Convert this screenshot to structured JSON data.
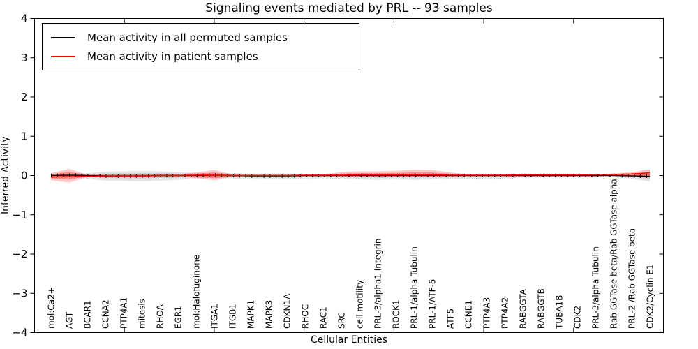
{
  "window": {
    "title": "Signaling events mediated by PRL -- 93 samples"
  },
  "legend": {
    "items": [
      {
        "label": "Mean activity in all permuted samples",
        "color": "#000000"
      },
      {
        "label": "Mean activity in patient samples",
        "color": "#ff0000"
      }
    ]
  },
  "chart_data": {
    "type": "line",
    "title": "Signaling events mediated by PRL -- 93 samples",
    "xlabel": "Cellular Entities",
    "ylabel": "Inferred Activity",
    "ylim": [
      -4,
      4
    ],
    "yticks": [
      4,
      3,
      2,
      1,
      0,
      -1,
      -2,
      -3,
      -4
    ],
    "yticklabels": [
      "4",
      "3",
      "2",
      "1",
      "0",
      "−1",
      "−2",
      "−3",
      "−4"
    ],
    "grid": false,
    "legend_position": "upper left",
    "colors": {
      "permuted": "#000000",
      "patient": "#ff0000"
    },
    "categories": [
      "mol:Ca2+",
      "AGT",
      "BCAR1",
      "CCNA2",
      "PTP4A1",
      "mitosis",
      "RHOA",
      "EGR1",
      "mol:Halofuginone",
      "ITGA1",
      "ITGB1",
      "MAPK1",
      "MAPK3",
      "CDKN1A",
      "RHOC",
      "RAC1",
      "SRC",
      "cell motility",
      "PRL-3/alpha1 Integrin",
      "ROCK1",
      "PRL-1/alpha Tubulin",
      "PRL-1/ATF-5",
      "ATF5",
      "CCNE1",
      "PTP4A3",
      "PTP4A2",
      "RABGGTA",
      "RABGGTB",
      "TUBA1B",
      "CDK2",
      "PRL-3/alpha Tubulin",
      "Rab GGTase beta/Rab GGTase alpha",
      "PRL-2 /Rab GGTase beta",
      "CDK2/Cyclin E1"
    ],
    "series": [
      {
        "name": "Mean activity in all permuted samples",
        "values": [
          0,
          0.01,
          0,
          -0.01,
          -0.01,
          -0.01,
          0,
          0,
          0,
          0.01,
          0,
          -0.01,
          -0.01,
          -0.01,
          0,
          0,
          0,
          0,
          0,
          0,
          0,
          0,
          0,
          0,
          0,
          0,
          0,
          0,
          0,
          0,
          0,
          0,
          -0.01,
          -0.02
        ]
      },
      {
        "name": "Mean activity in patient samples",
        "values": [
          -0.04,
          -0.03,
          -0.02,
          -0.01,
          -0.01,
          -0.01,
          0,
          0,
          0.01,
          0.01,
          0,
          0,
          0,
          0,
          0.01,
          0.01,
          0.01,
          0.02,
          0.02,
          0.02,
          0.02,
          0.02,
          0.01,
          0.01,
          0.01,
          0.01,
          0.02,
          0.02,
          0.02,
          0.02,
          0.03,
          0.03,
          0.04,
          0.07
        ]
      }
    ],
    "bands": {
      "permuted_hi": [
        0.04,
        0.05,
        0.06,
        0.1,
        0.11,
        0.12,
        0.11,
        0.09,
        0.06,
        0.05,
        0.06,
        0.05,
        0.05,
        0.05,
        0.05,
        0.04,
        0.05,
        0.05,
        0.05,
        0.05,
        0.05,
        0.05,
        0.05,
        0.05,
        0.05,
        0.05,
        0.05,
        0.05,
        0.05,
        0.05,
        0.04,
        0.04,
        0.05,
        0.06
      ],
      "permuted_lo": [
        -0.05,
        -0.05,
        -0.08,
        -0.13,
        -0.14,
        -0.15,
        -0.13,
        -0.11,
        -0.07,
        -0.05,
        -0.08,
        -0.08,
        -0.1,
        -0.1,
        -0.09,
        -0.07,
        -0.08,
        -0.1,
        -0.11,
        -0.1,
        -0.11,
        -0.1,
        -0.08,
        -0.08,
        -0.09,
        -0.08,
        -0.05,
        -0.05,
        -0.05,
        -0.05,
        -0.04,
        -0.04,
        -0.08,
        -0.16
      ],
      "patient_hi": [
        0.06,
        0.17,
        0.02,
        0.03,
        0.04,
        0.04,
        0.04,
        0.03,
        0.08,
        0.14,
        0.03,
        0.02,
        0.02,
        0.02,
        0.03,
        0.03,
        0.09,
        0.11,
        0.11,
        0.12,
        0.15,
        0.14,
        0.08,
        0.03,
        0.03,
        0.03,
        0.03,
        0.03,
        0.03,
        0.03,
        0.03,
        0.06,
        0.08,
        0.16
      ],
      "patient_lo": [
        -0.12,
        -0.18,
        -0.04,
        -0.03,
        -0.04,
        -0.04,
        -0.04,
        -0.03,
        -0.06,
        -0.12,
        -0.03,
        -0.02,
        -0.02,
        -0.02,
        -0.03,
        -0.03,
        -0.03,
        -0.04,
        -0.04,
        -0.04,
        -0.04,
        -0.04,
        -0.03,
        -0.03,
        -0.03,
        -0.03,
        -0.03,
        -0.03,
        -0.03,
        -0.03,
        -0.03,
        0.0,
        -0.01,
        -0.02
      ]
    }
  }
}
